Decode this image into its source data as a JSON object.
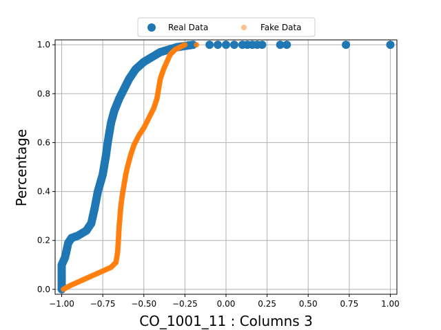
{
  "chart_data": {
    "type": "scatter",
    "title": "",
    "xlabel": "CO_1001_11 : Columns 3",
    "ylabel": "Percentage",
    "xlim": [
      -1.04,
      1.04
    ],
    "ylim": [
      -0.02,
      1.02
    ],
    "x_ticks": [
      -1.0,
      -0.75,
      -0.5,
      -0.25,
      0.0,
      0.25,
      0.5,
      0.75,
      1.0
    ],
    "x_tick_labels": [
      "−1.00",
      "−0.75",
      "−0.50",
      "−0.25",
      "0.00",
      "0.25",
      "0.50",
      "0.75",
      "1.00"
    ],
    "y_ticks": [
      0.0,
      0.2,
      0.4,
      0.6,
      0.8,
      1.0
    ],
    "y_tick_labels": [
      "0.0",
      "0.2",
      "0.4",
      "0.6",
      "0.8",
      "1.0"
    ],
    "grid": true,
    "legend_position": "top-center",
    "series": [
      {
        "name": "Real Data",
        "color": "#1f77b4",
        "marker": "large-circle",
        "points": [
          [
            -1.0,
            0.0
          ],
          [
            -1.0,
            0.05
          ],
          [
            -1.0,
            0.1
          ],
          [
            -0.98,
            0.13
          ],
          [
            -0.97,
            0.16
          ],
          [
            -0.96,
            0.19
          ],
          [
            -0.94,
            0.21
          ],
          [
            -0.9,
            0.22
          ],
          [
            -0.85,
            0.24
          ],
          [
            -0.82,
            0.27
          ],
          [
            -0.8,
            0.33
          ],
          [
            -0.78,
            0.4
          ],
          [
            -0.75,
            0.47
          ],
          [
            -0.73,
            0.55
          ],
          [
            -0.72,
            0.6
          ],
          [
            -0.71,
            0.64
          ],
          [
            -0.7,
            0.68
          ],
          [
            -0.68,
            0.73
          ],
          [
            -0.65,
            0.78
          ],
          [
            -0.62,
            0.82
          ],
          [
            -0.59,
            0.86
          ],
          [
            -0.55,
            0.9
          ],
          [
            -0.5,
            0.93
          ],
          [
            -0.45,
            0.95
          ],
          [
            -0.4,
            0.97
          ],
          [
            -0.35,
            0.98
          ],
          [
            -0.3,
            0.99
          ],
          [
            -0.25,
            0.995
          ],
          [
            -0.2,
            1.0
          ],
          [
            -0.1,
            1.0
          ],
          [
            -0.05,
            1.0
          ],
          [
            0.0,
            1.0
          ],
          [
            0.05,
            1.0
          ],
          [
            0.1,
            1.0
          ],
          [
            0.13,
            1.0
          ],
          [
            0.16,
            1.0
          ],
          [
            0.19,
            1.0
          ],
          [
            0.22,
            1.0
          ],
          [
            0.33,
            1.0
          ],
          [
            0.37,
            1.0
          ],
          [
            0.73,
            1.0
          ],
          [
            1.0,
            1.0
          ]
        ]
      },
      {
        "name": "Fake Data",
        "color": "#ff7f0e",
        "marker": "small-circle",
        "points": [
          [
            -0.99,
            0.0
          ],
          [
            -0.95,
            0.015
          ],
          [
            -0.9,
            0.03
          ],
          [
            -0.85,
            0.045
          ],
          [
            -0.8,
            0.06
          ],
          [
            -0.75,
            0.075
          ],
          [
            -0.7,
            0.09
          ],
          [
            -0.67,
            0.11
          ],
          [
            -0.66,
            0.15
          ],
          [
            -0.655,
            0.2
          ],
          [
            -0.65,
            0.26
          ],
          [
            -0.645,
            0.3
          ],
          [
            -0.64,
            0.34
          ],
          [
            -0.63,
            0.39
          ],
          [
            -0.62,
            0.43
          ],
          [
            -0.61,
            0.47
          ],
          [
            -0.6,
            0.5
          ],
          [
            -0.58,
            0.55
          ],
          [
            -0.56,
            0.59
          ],
          [
            -0.53,
            0.63
          ],
          [
            -0.5,
            0.66
          ],
          [
            -0.47,
            0.7
          ],
          [
            -0.44,
            0.74
          ],
          [
            -0.42,
            0.78
          ],
          [
            -0.41,
            0.82
          ],
          [
            -0.4,
            0.86
          ],
          [
            -0.38,
            0.9
          ],
          [
            -0.36,
            0.93
          ],
          [
            -0.34,
            0.96
          ],
          [
            -0.31,
            0.98
          ],
          [
            -0.28,
            0.99
          ],
          [
            -0.25,
            1.0
          ],
          [
            -0.18,
            1.0
          ]
        ]
      }
    ]
  }
}
